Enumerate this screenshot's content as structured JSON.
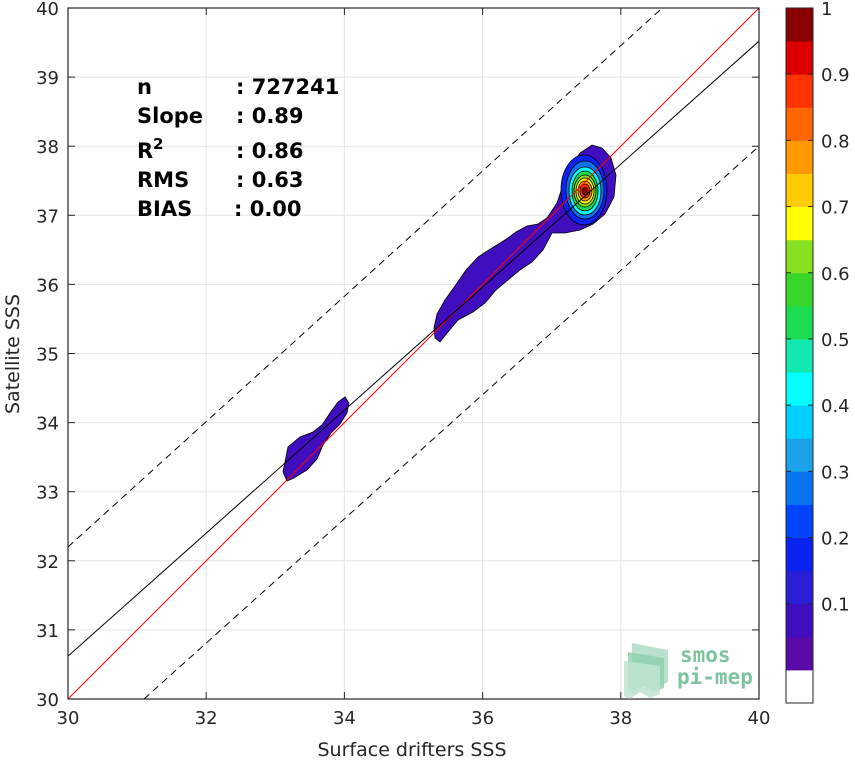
{
  "chart_data": {
    "type": "heatmap",
    "xlabel": "Surface drifters SSS",
    "ylabel": "Satellite SSS",
    "xlim": [
      30,
      40
    ],
    "ylim": [
      30,
      40
    ],
    "x_ticks": [
      "30",
      "32",
      "34",
      "36",
      "38",
      "40"
    ],
    "y_ticks": [
      "30",
      "31",
      "32",
      "33",
      "34",
      "35",
      "36",
      "37",
      "38",
      "39",
      "40"
    ],
    "grid": true,
    "stats": [
      {
        "label": "n",
        "value": ": 727241"
      },
      {
        "label": "Slope",
        "value": ": 0.89"
      },
      {
        "label": "R",
        "sup": "2",
        "value": ": 0.86"
      },
      {
        "label": "RMS",
        "value": ": 0.63"
      },
      {
        "label": "BIAS",
        "value": ": 0.00"
      }
    ],
    "lines": [
      {
        "kind": "one-to-one",
        "color": "#ff0000",
        "x": [
          30,
          40
        ],
        "y": [
          30,
          40
        ]
      },
      {
        "kind": "regression",
        "color": "#000000",
        "x": [
          30,
          40
        ],
        "y": [
          30.62,
          39.52
        ]
      },
      {
        "kind": "upper-bound",
        "color": "#000000",
        "dash": true,
        "x": [
          30,
          38.6
        ],
        "y": [
          32.2,
          40
        ]
      },
      {
        "kind": "lower-bound",
        "color": "#000000",
        "dash": true,
        "x": [
          31.1,
          40
        ],
        "y": [
          30,
          38
        ]
      }
    ],
    "density_peak": {
      "x": 37.5,
      "y": 37.4
    },
    "colorbar": {
      "ticks": [
        "0.1",
        "0.2",
        "0.3",
        "0.4",
        "0.5",
        "0.6",
        "0.7",
        "0.8",
        "0.9",
        "1"
      ],
      "levels": [
        0,
        0.05,
        0.1,
        0.15,
        0.2,
        0.25,
        0.3,
        0.35,
        0.4,
        0.45,
        0.5,
        0.55,
        0.6,
        0.65,
        0.7,
        0.75,
        0.8,
        0.85,
        0.9,
        0.95,
        1.0
      ],
      "colors": [
        "#ffffff",
        "#5a0aa8",
        "#3f0fbf",
        "#2a1fd6",
        "#0a22f2",
        "#0044ff",
        "#0a74f0",
        "#1aa2ea",
        "#00d0ff",
        "#00ffff",
        "#10e8b0",
        "#1cdc52",
        "#36d62a",
        "#88e020",
        "#ffff00",
        "#ffcc00",
        "#ff9900",
        "#ff6600",
        "#ff3300",
        "#dd0000",
        "#8b0000"
      ]
    }
  },
  "logo": {
    "line1": "smos",
    "line2": "pi-mep"
  }
}
